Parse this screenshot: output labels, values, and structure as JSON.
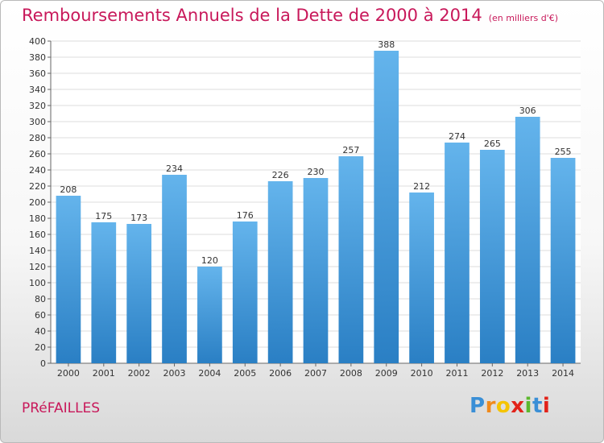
{
  "header": {
    "title": "Remboursements Annuels de la Dette de 2000 à 2014",
    "unit": "(en milliers d'€)"
  },
  "footer": {
    "place": "PRéFAILLES",
    "logo_letters": [
      "P",
      "r",
      "o",
      "x",
      "i",
      "t",
      "i"
    ],
    "logo_colors": [
      "#3a8fd6",
      "#f08a1c",
      "#f5c400",
      "#e2231a",
      "#5cb82e",
      "#3a8fd6",
      "#e2231a"
    ]
  },
  "colors": {
    "bar_light": "#64b4ec",
    "bar_dark": "#2a7fc4",
    "title": "#c8185a"
  },
  "chart_data": {
    "type": "bar",
    "categories": [
      "2000",
      "2001",
      "2002",
      "2003",
      "2004",
      "2005",
      "2006",
      "2007",
      "2008",
      "2009",
      "2010",
      "2011",
      "2012",
      "2013",
      "2014"
    ],
    "values": [
      208,
      175,
      173,
      234,
      120,
      176,
      226,
      230,
      257,
      388,
      212,
      274,
      265,
      306,
      255
    ],
    "ylim": [
      0,
      400
    ],
    "yticks": [
      0,
      20,
      40,
      60,
      80,
      100,
      120,
      140,
      160,
      180,
      200,
      220,
      240,
      260,
      280,
      300,
      320,
      340,
      360,
      380,
      400
    ],
    "grid": true
  }
}
